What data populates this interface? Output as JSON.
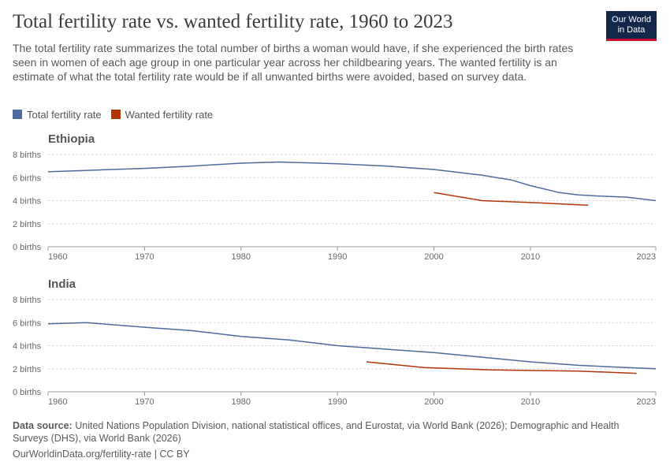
{
  "header": {
    "title": "Total fertility rate vs. wanted fertility rate, 1960 to 2023",
    "subtitle": "The total fertility rate summarizes the total number of births a woman would have, if she experienced the birth rates seen in women of each age group in one particular year across her childbearing years. The wanted fertility is an estimate of what the total fertility rate would be if all unwanted births were avoided, based on survey data.",
    "logo": [
      "Our World",
      "in Data"
    ]
  },
  "footer": {
    "source_label": "Data source:",
    "source": "United Nations Population Division, national statistical offices, and Eurostat, via World Bank (2026); Demographic and Health Surveys (DHS), via World Bank (2026)",
    "url": "OurWorldinData.org/fertility-rate | CC BY"
  },
  "chart_data": [
    {
      "type": "line",
      "title": "Ethiopia",
      "xlim": [
        1960,
        2023
      ],
      "xticks": [
        1960,
        1970,
        1980,
        1990,
        2000,
        2010,
        2023
      ],
      "ylim": [
        0,
        8
      ],
      "yticks": [
        {
          "value": 0,
          "label": "0 births"
        },
        {
          "value": 2,
          "label": "2 births"
        },
        {
          "value": 4,
          "label": "4 births"
        },
        {
          "value": 6,
          "label": "6 births"
        },
        {
          "value": 8,
          "label": "8 births"
        }
      ],
      "grid": true,
      "series": [
        {
          "name": "Total fertility rate",
          "color": "#4c6a9c",
          "x": [
            1960,
            1965,
            1970,
            1975,
            1980,
            1984,
            1990,
            1995,
            2000,
            2005,
            2008,
            2010,
            2013,
            2015,
            2017,
            2020,
            2023
          ],
          "values": [
            6.5,
            6.65,
            6.8,
            7.0,
            7.25,
            7.35,
            7.2,
            7.0,
            6.7,
            6.2,
            5.8,
            5.3,
            4.7,
            4.5,
            4.4,
            4.3,
            4.0
          ]
        },
        {
          "name": "Wanted fertility rate",
          "color": "#b13507",
          "x": [
            2000,
            2005,
            2011,
            2016
          ],
          "values": [
            4.7,
            4.0,
            3.8,
            3.6
          ]
        }
      ]
    },
    {
      "type": "line",
      "title": "India",
      "xlim": [
        1960,
        2023
      ],
      "xticks": [
        1960,
        1970,
        1980,
        1990,
        2000,
        2010,
        2023
      ],
      "ylim": [
        0,
        8
      ],
      "yticks": [
        {
          "value": 0,
          "label": "0 births"
        },
        {
          "value": 2,
          "label": "2 births"
        },
        {
          "value": 4,
          "label": "4 births"
        },
        {
          "value": 6,
          "label": "6 births"
        },
        {
          "value": 8,
          "label": "8 births"
        }
      ],
      "grid": true,
      "series": [
        {
          "color": "#4c6a9c",
          "x": [
            1960,
            1964,
            1970,
            1975,
            1980,
            1985,
            1990,
            1995,
            2000,
            2005,
            2010,
            2015,
            2020,
            2023
          ],
          "values": [
            5.9,
            6.0,
            5.6,
            5.3,
            4.8,
            4.5,
            4.0,
            3.7,
            3.4,
            3.0,
            2.6,
            2.3,
            2.1,
            2.0
          ]
        },
        {
          "color": "#b13507",
          "x": [
            1993,
            1999,
            2006,
            2015,
            2021
          ],
          "values": [
            2.6,
            2.1,
            1.9,
            1.8,
            1.6
          ]
        }
      ]
    }
  ]
}
